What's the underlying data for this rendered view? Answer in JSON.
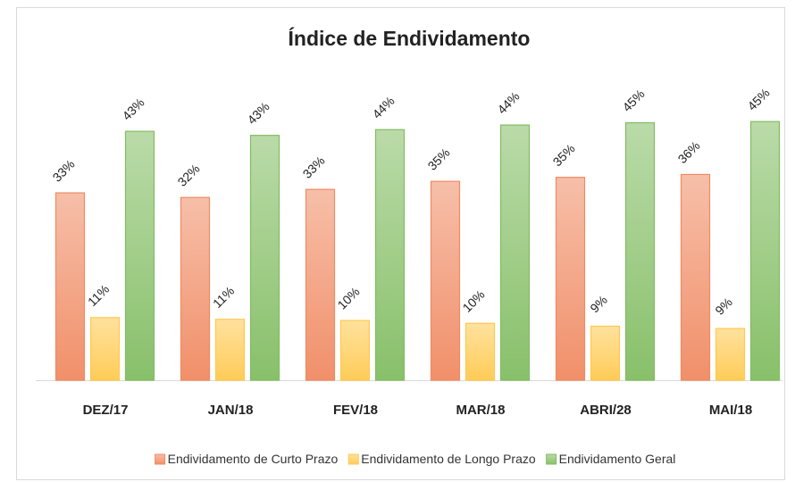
{
  "chart_data": {
    "type": "bar",
    "title": "Índice de Endividamento",
    "categories": [
      "DEZ/17",
      "JAN/18",
      "FEV/18",
      "MAR/18",
      "ABRI/28",
      "MAI/18"
    ],
    "ylim": [
      0,
      50
    ],
    "series": [
      {
        "name": "Endividamento de Curto Prazo",
        "color": "#f08a62",
        "values": [
          32.6,
          31.8,
          33.2,
          34.6,
          35.3,
          35.8
        ],
        "value_labels": [
          "33%",
          "32%",
          "33%",
          "35%",
          "35%",
          "36%"
        ]
      },
      {
        "name": "Endividamento de Longo Prazo",
        "color": "#ffc94f",
        "values": [
          10.9,
          10.6,
          10.4,
          9.9,
          9.4,
          9.0
        ],
        "value_labels": [
          "11%",
          "11%",
          "10%",
          "10%",
          "9%",
          "9%"
        ]
      },
      {
        "name": "Endividamento Geral",
        "color": "#82bd62",
        "values": [
          43.3,
          42.6,
          43.6,
          44.4,
          44.8,
          45.0
        ],
        "value_labels": [
          "43%",
          "43%",
          "44%",
          "44%",
          "45%",
          "45%"
        ]
      }
    ]
  }
}
